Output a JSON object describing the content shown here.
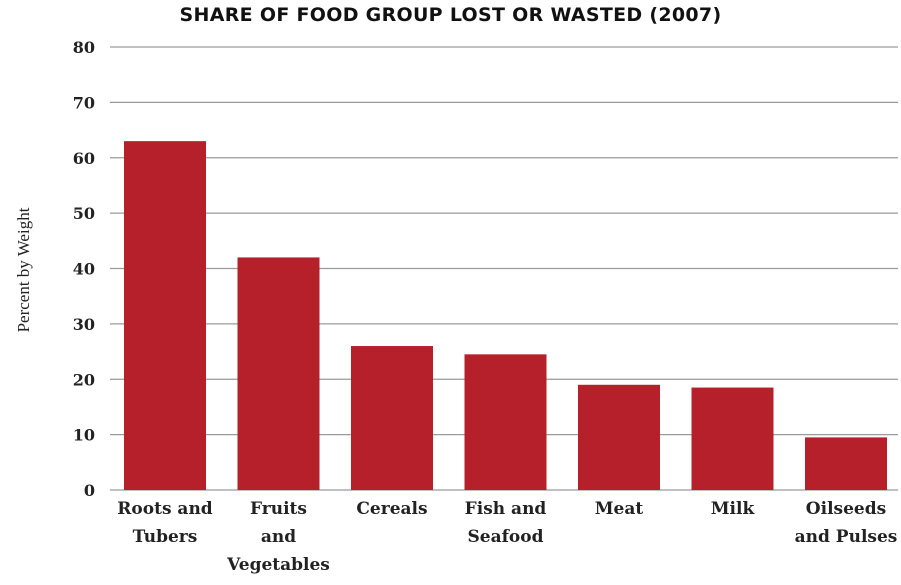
{
  "chart_data": {
    "type": "bar",
    "title": "SHARE OF FOOD GROUP LOST OR WASTED (2007)",
    "xlabel": "",
    "ylabel": "Percent by Weight",
    "categories": [
      [
        "Roots and",
        "Tubers"
      ],
      [
        "Fruits",
        "and",
        "Vegetables"
      ],
      [
        "Cereals"
      ],
      [
        "Fish and",
        "Seafood"
      ],
      [
        "Meat"
      ],
      [
        "Milk"
      ],
      [
        "Oilseeds",
        "and Pulses"
      ]
    ],
    "values": [
      63,
      42,
      26,
      24.5,
      19,
      18.5,
      9.5
    ],
    "ylim": [
      0,
      80
    ],
    "yticks": [
      0,
      10,
      20,
      30,
      40,
      50,
      60,
      70,
      80
    ],
    "grid": true,
    "legend": "none",
    "bar_color": "#b5202b"
  }
}
